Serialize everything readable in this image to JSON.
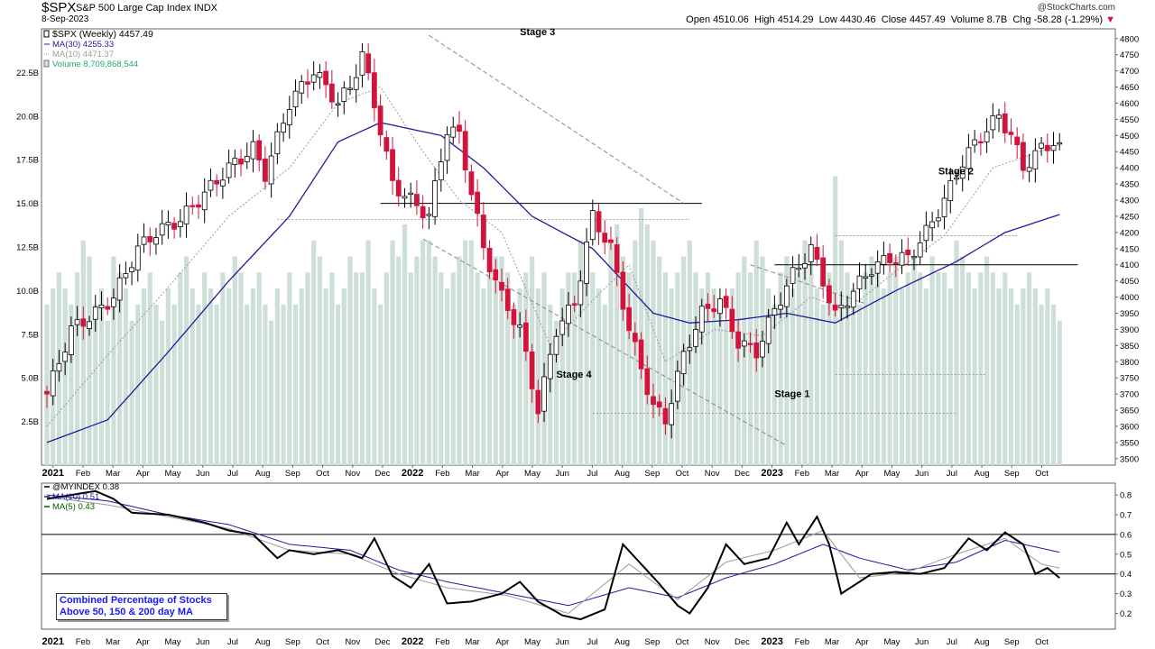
{
  "header": {
    "symbol": "$SPX",
    "name": "S&P 500 Large Cap Index",
    "exchange": "INDX",
    "date": "8-Sep-2023",
    "copyright": "@StockCharts.com",
    "open_label": "Open",
    "open": "4510.06",
    "high_label": "High",
    "high": "4514.29",
    "low_label": "Low",
    "low": "4430.46",
    "close_label": "Close",
    "close": "4457.49",
    "volume_label": "Volume",
    "volume": "8.7B",
    "chg_label": "Chg",
    "chg": "-58.28 (-1.29%)"
  },
  "colors": {
    "up_candle": "#ffffff",
    "down_candle": "#d2143c",
    "ma30": "#1c1ca0",
    "ma10": "#9a9a9a",
    "volume": "#cddfd7",
    "index_line": "#000000",
    "ma5": "#006000"
  },
  "chart_data": [
    {
      "type": "candlestick",
      "title": "$SPX (Weekly) 4457.49",
      "legend": [
        "$SPX (Weekly) 4457.49",
        "MA(30) 4255.33",
        "MA(10) 4471.37",
        "Volume 8,709,868,544"
      ],
      "y_ticks": [
        3500,
        3550,
        3600,
        3650,
        3700,
        3750,
        3800,
        3850,
        3900,
        3950,
        4000,
        4050,
        4100,
        4150,
        4200,
        4250,
        4300,
        4350,
        4400,
        4450,
        4500,
        4550,
        4600,
        4650,
        4700,
        4750,
        4800
      ],
      "ylim": [
        3480,
        4830
      ],
      "volume_ticks": [
        "2.5B",
        "5.0B",
        "7.5B",
        "10.0B",
        "12.5B",
        "15.0B",
        "17.5B",
        "20.0B",
        "22.5B"
      ],
      "volume_ylim": [
        0,
        25
      ],
      "x_ticks": [
        "2021",
        "Feb",
        "Mar",
        "Apr",
        "May",
        "Jun",
        "Jul",
        "Aug",
        "Sep",
        "Oct",
        "Nov",
        "Dec",
        "2022",
        "Feb",
        "Mar",
        "Apr",
        "May",
        "Jun",
        "Jul",
        "Aug",
        "Sep",
        "Oct",
        "Nov",
        "Dec",
        "2023",
        "Feb",
        "Mar",
        "Apr",
        "May",
        "Jun",
        "Jul",
        "Aug",
        "Sep",
        "Oct"
      ],
      "anchors": [
        [
          0,
          3700
        ],
        [
          4,
          3900
        ],
        [
          8,
          3950
        ],
        [
          11,
          4000
        ],
        [
          15,
          4150
        ],
        [
          18,
          4200
        ],
        [
          22,
          4240
        ],
        [
          26,
          4320
        ],
        [
          30,
          4400
        ],
        [
          34,
          4460
        ],
        [
          36,
          4380
        ],
        [
          40,
          4600
        ],
        [
          44,
          4700
        ],
        [
          48,
          4600
        ],
        [
          50,
          4650
        ],
        [
          52,
          4750
        ],
        [
          54,
          4600
        ],
        [
          57,
          4350
        ],
        [
          60,
          4300
        ],
        [
          63,
          4250
        ],
        [
          66,
          4520
        ],
        [
          68,
          4500
        ],
        [
          72,
          4150
        ],
        [
          75,
          4000
        ],
        [
          78,
          3900
        ],
        [
          81,
          3650
        ],
        [
          84,
          3900
        ],
        [
          87,
          3980
        ],
        [
          90,
          4250
        ],
        [
          93,
          4150
        ],
        [
          96,
          3900
        ],
        [
          100,
          3660
        ],
        [
          102,
          3620
        ],
        [
          105,
          3820
        ],
        [
          108,
          3950
        ],
        [
          111,
          3990
        ],
        [
          114,
          3860
        ],
        [
          117,
          3830
        ],
        [
          120,
          3960
        ],
        [
          123,
          4070
        ],
        [
          126,
          4150
        ],
        [
          128,
          4050
        ],
        [
          130,
          3940
        ],
        [
          133,
          4020
        ],
        [
          136,
          4090
        ],
        [
          139,
          4120
        ],
        [
          142,
          4120
        ],
        [
          145,
          4200
        ],
        [
          148,
          4300
        ],
        [
          151,
          4420
        ],
        [
          154,
          4500
        ],
        [
          157,
          4560
        ],
        [
          159,
          4500
        ],
        [
          161,
          4400
        ],
        [
          164,
          4460
        ],
        [
          166,
          4480
        ],
        [
          167,
          4457.49
        ]
      ],
      "ma30_anchors": [
        [
          0,
          3550
        ],
        [
          10,
          3620
        ],
        [
          20,
          3830
        ],
        [
          30,
          4050
        ],
        [
          40,
          4250
        ],
        [
          48,
          4480
        ],
        [
          55,
          4540
        ],
        [
          65,
          4500
        ],
        [
          72,
          4400
        ],
        [
          80,
          4250
        ],
        [
          90,
          4150
        ],
        [
          100,
          3950
        ],
        [
          106,
          3920
        ],
        [
          114,
          3930
        ],
        [
          122,
          3950
        ],
        [
          130,
          3920
        ],
        [
          140,
          4020
        ],
        [
          150,
          4110
        ],
        [
          158,
          4200
        ],
        [
          167,
          4255.33
        ]
      ],
      "ma10_anchors": [
        [
          0,
          3600
        ],
        [
          10,
          3820
        ],
        [
          20,
          4030
        ],
        [
          30,
          4250
        ],
        [
          40,
          4400
        ],
        [
          48,
          4600
        ],
        [
          55,
          4650
        ],
        [
          62,
          4450
        ],
        [
          68,
          4300
        ],
        [
          75,
          4200
        ],
        [
          83,
          3850
        ],
        [
          90,
          3990
        ],
        [
          96,
          4100
        ],
        [
          102,
          3800
        ],
        [
          110,
          3900
        ],
        [
          118,
          3880
        ],
        [
          126,
          4000
        ],
        [
          132,
          3960
        ],
        [
          140,
          4080
        ],
        [
          148,
          4190
        ],
        [
          156,
          4400
        ],
        [
          167,
          4471.37
        ]
      ],
      "annotations": [
        "Stage 3",
        "Stage 4",
        "Stage 1",
        "Stage 2"
      ],
      "horizontal_lines": [
        4290,
        4100
      ],
      "dotted_lines": [
        4240,
        4190,
        3760,
        3640
      ],
      "trendlines": [
        [
          [
            63,
            4810
          ],
          [
            105,
            4290
          ]
        ],
        [
          [
            62,
            4180
          ],
          [
            122,
            3540
          ]
        ],
        [
          [
            116,
            4100
          ],
          [
            135,
            3980
          ]
        ]
      ]
    },
    {
      "type": "line",
      "title": "@MYINDEX 0.38",
      "legend": [
        "@MYINDEX 0.38",
        "MA(10) 0.51",
        "MA(5) 0.43"
      ],
      "y_ticks": [
        0.2,
        0.3,
        0.4,
        0.5,
        0.6,
        0.7,
        0.8
      ],
      "ylim": [
        0.12,
        0.86
      ],
      "reference_lines": [
        0.4,
        0.6
      ],
      "anchors": [
        [
          0,
          0.78
        ],
        [
          4,
          0.8
        ],
        [
          8,
          0.82
        ],
        [
          11,
          0.78
        ],
        [
          14,
          0.71
        ],
        [
          20,
          0.7
        ],
        [
          26,
          0.66
        ],
        [
          30,
          0.62
        ],
        [
          34,
          0.6
        ],
        [
          38,
          0.48
        ],
        [
          40,
          0.52
        ],
        [
          44,
          0.5
        ],
        [
          48,
          0.52
        ],
        [
          52,
          0.48
        ],
        [
          54,
          0.58
        ],
        [
          57,
          0.39
        ],
        [
          60,
          0.33
        ],
        [
          63,
          0.45
        ],
        [
          66,
          0.25
        ],
        [
          70,
          0.26
        ],
        [
          75,
          0.3
        ],
        [
          78,
          0.36
        ],
        [
          81,
          0.26
        ],
        [
          85,
          0.19
        ],
        [
          88,
          0.17
        ],
        [
          92,
          0.22
        ],
        [
          95,
          0.55
        ],
        [
          98,
          0.45
        ],
        [
          101,
          0.35
        ],
        [
          104,
          0.24
        ],
        [
          106,
          0.2
        ],
        [
          109,
          0.33
        ],
        [
          112,
          0.55
        ],
        [
          115,
          0.45
        ],
        [
          119,
          0.48
        ],
        [
          122,
          0.66
        ],
        [
          124,
          0.55
        ],
        [
          127,
          0.69
        ],
        [
          129,
          0.55
        ],
        [
          131,
          0.3
        ],
        [
          133,
          0.34
        ],
        [
          136,
          0.4
        ],
        [
          140,
          0.41
        ],
        [
          144,
          0.4
        ],
        [
          148,
          0.43
        ],
        [
          152,
          0.58
        ],
        [
          155,
          0.52
        ],
        [
          158,
          0.61
        ],
        [
          161,
          0.55
        ],
        [
          163,
          0.4
        ],
        [
          165,
          0.43
        ],
        [
          167,
          0.38
        ]
      ],
      "ma10_anchors": [
        [
          0,
          0.8
        ],
        [
          10,
          0.77
        ],
        [
          20,
          0.7
        ],
        [
          30,
          0.65
        ],
        [
          40,
          0.55
        ],
        [
          50,
          0.52
        ],
        [
          58,
          0.42
        ],
        [
          66,
          0.36
        ],
        [
          76,
          0.3
        ],
        [
          86,
          0.24
        ],
        [
          96,
          0.33
        ],
        [
          104,
          0.28
        ],
        [
          112,
          0.38
        ],
        [
          120,
          0.45
        ],
        [
          128,
          0.55
        ],
        [
          134,
          0.48
        ],
        [
          142,
          0.42
        ],
        [
          150,
          0.46
        ],
        [
          158,
          0.57
        ],
        [
          164,
          0.53
        ],
        [
          167,
          0.51
        ]
      ],
      "ma5_anchors": [
        [
          0,
          0.79
        ],
        [
          10,
          0.75
        ],
        [
          20,
          0.69
        ],
        [
          30,
          0.63
        ],
        [
          40,
          0.52
        ],
        [
          50,
          0.5
        ],
        [
          58,
          0.4
        ],
        [
          66,
          0.33
        ],
        [
          76,
          0.29
        ],
        [
          86,
          0.2
        ],
        [
          96,
          0.45
        ],
        [
          104,
          0.27
        ],
        [
          112,
          0.46
        ],
        [
          120,
          0.52
        ],
        [
          128,
          0.62
        ],
        [
          134,
          0.38
        ],
        [
          142,
          0.41
        ],
        [
          150,
          0.5
        ],
        [
          158,
          0.58
        ],
        [
          164,
          0.45
        ],
        [
          167,
          0.43
        ]
      ],
      "x_ticks": [
        "2021",
        "Feb",
        "Mar",
        "Apr",
        "May",
        "Jun",
        "Jul",
        "Aug",
        "Sep",
        "Oct",
        "Nov",
        "Dec",
        "2022",
        "Feb",
        "Mar",
        "Apr",
        "May",
        "Jun",
        "Jul",
        "Aug",
        "Sep",
        "Oct",
        "Nov",
        "Dec",
        "2023",
        "Feb",
        "Mar",
        "Apr",
        "May",
        "Jun",
        "Jul",
        "Aug",
        "Sep",
        "Oct"
      ]
    }
  ],
  "note": {
    "line1": "Combined Percentage of Stocks",
    "line2": "Above 50, 150 & 200 day MA"
  }
}
